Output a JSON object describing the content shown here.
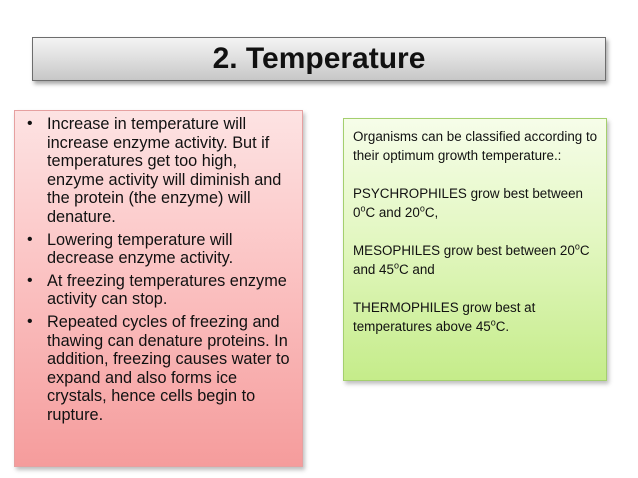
{
  "slide": {
    "title": "2. Temperature"
  },
  "left_panel": {
    "bullets": [
      "Increase in temperature will increase enzyme activity. But if temperatures get too high, enzyme activity will diminish and the protein (the enzyme) will denature.",
      "Lowering temperature will decrease enzyme activity.",
      "At freezing temperatures enzyme activity can stop.",
      "Repeated cycles of freezing and thawing can denature proteins. In addition, freezing causes water to expand and also forms ice crystals, hence cells begin to rupture."
    ],
    "bullet_glyph": "•"
  },
  "right_panel": {
    "intro": "Organisms can be classified according to their optimum growth temperature.:",
    "psychrophiles": {
      "text_a": "PSYCHROPHILES grow best between 0",
      "sup_a": "o",
      "text_b": "C and 20",
      "sup_b": "o",
      "text_c": "C,"
    },
    "mesophiles": {
      "text_a": "MESOPHILES grow best between 20",
      "sup_a": "o",
      "text_b": "C and 45",
      "sup_b": "o",
      "text_c": "C and"
    },
    "thermophiles": {
      "text_a": "THERMOPHILES grow best at temperatures above 45",
      "sup_a": "o",
      "text_b": "C."
    }
  },
  "colors": {
    "title_box": "#dcdcdc",
    "left_box": "#fbc3c3",
    "right_box": "#e3f7c2"
  }
}
